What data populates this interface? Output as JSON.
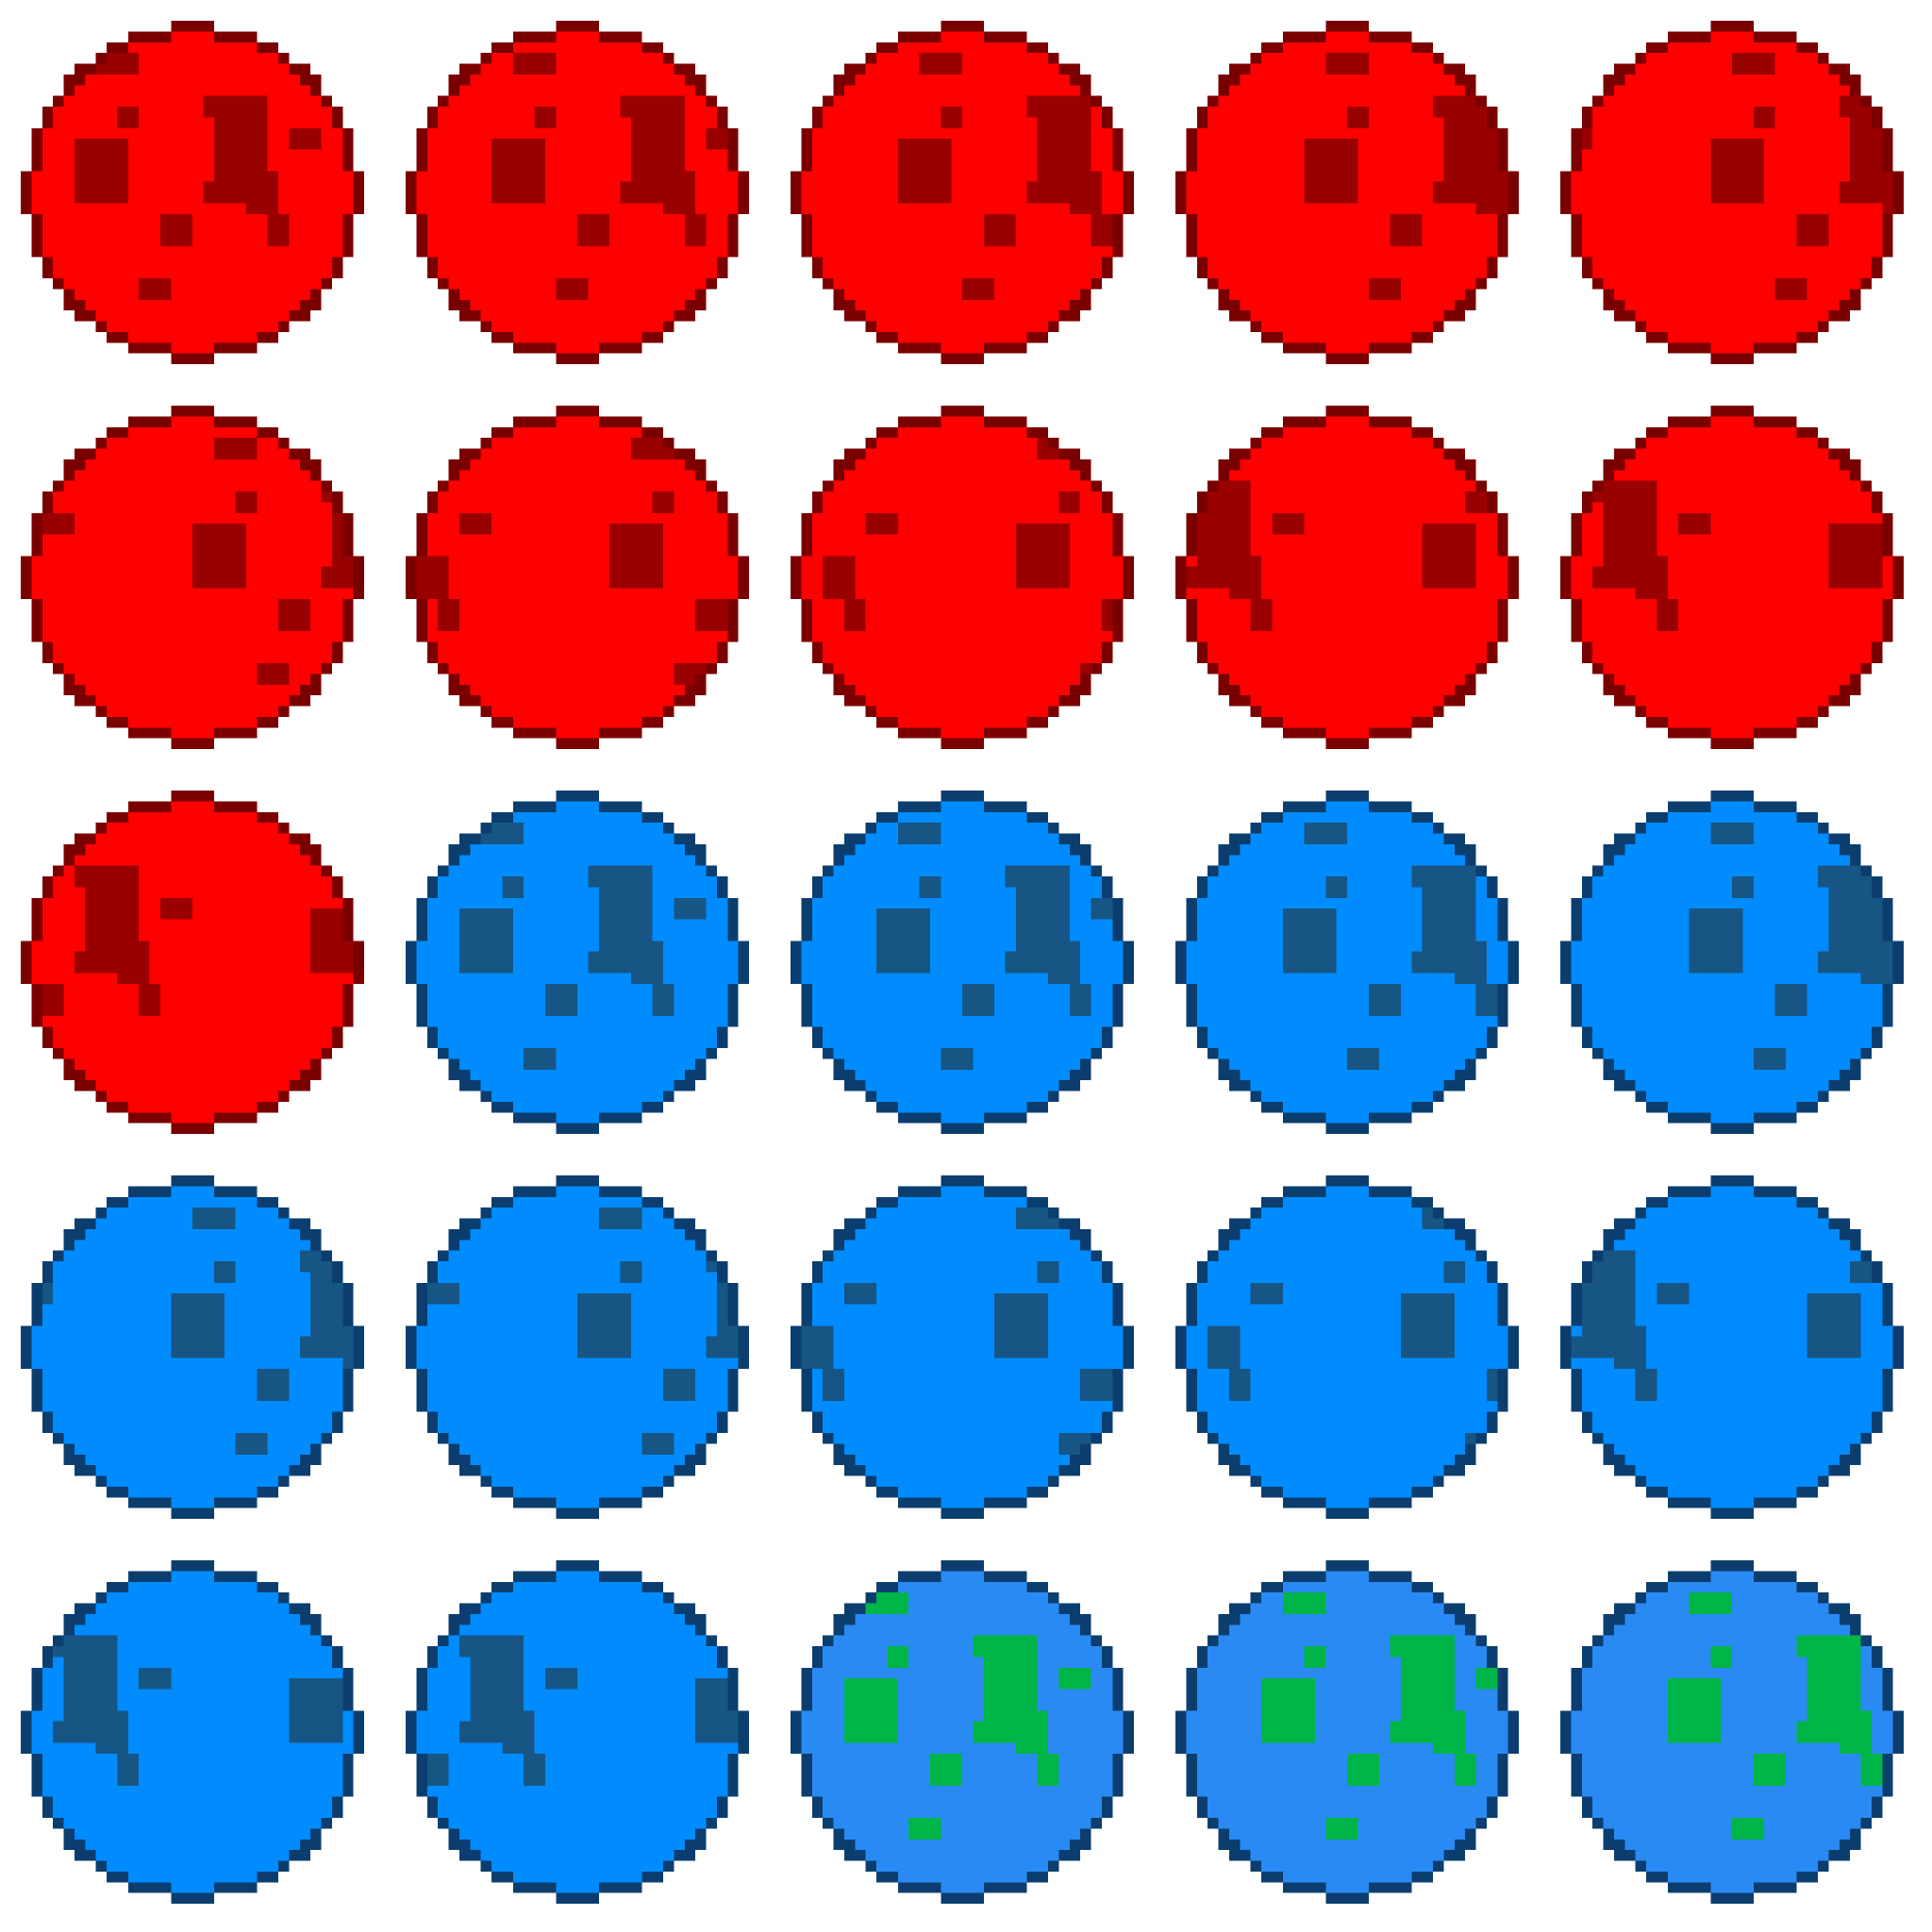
{
  "sprite_sheet": {
    "columns": 5,
    "rows": 5,
    "themes": {
      "mars": {
        "outline": "#7a0000",
        "body": "#ff0000",
        "spot": "#990000"
      },
      "ocean": {
        "outline": "#0b3e6e",
        "body": "#008cff",
        "spot": "#175584"
      },
      "earth": {
        "outline": "#0b3e6e",
        "body": "#2a8af4",
        "spot": "#00b548"
      }
    },
    "frames": [
      {
        "theme": "mars",
        "rotation": 0
      },
      {
        "theme": "mars",
        "rotation": 1
      },
      {
        "theme": "mars",
        "rotation": 2
      },
      {
        "theme": "mars",
        "rotation": 3
      },
      {
        "theme": "mars",
        "rotation": 4
      },
      {
        "theme": "mars",
        "rotation": 5
      },
      {
        "theme": "mars",
        "rotation": 6
      },
      {
        "theme": "mars",
        "rotation": 7
      },
      {
        "theme": "mars",
        "rotation": 8
      },
      {
        "theme": "mars",
        "rotation": 9
      },
      {
        "theme": "mars",
        "rotation": 10
      },
      {
        "theme": "ocean",
        "rotation": 0
      },
      {
        "theme": "ocean",
        "rotation": 1
      },
      {
        "theme": "ocean",
        "rotation": 2
      },
      {
        "theme": "ocean",
        "rotation": 3
      },
      {
        "theme": "ocean",
        "rotation": 4
      },
      {
        "theme": "ocean",
        "rotation": 5
      },
      {
        "theme": "ocean",
        "rotation": 6
      },
      {
        "theme": "ocean",
        "rotation": 7
      },
      {
        "theme": "ocean",
        "rotation": 8
      },
      {
        "theme": "ocean",
        "rotation": 9
      },
      {
        "theme": "ocean",
        "rotation": 10
      },
      {
        "theme": "earth",
        "rotation": 0
      },
      {
        "theme": "earth",
        "rotation": 1
      },
      {
        "theme": "earth",
        "rotation": 2
      }
    ]
  }
}
